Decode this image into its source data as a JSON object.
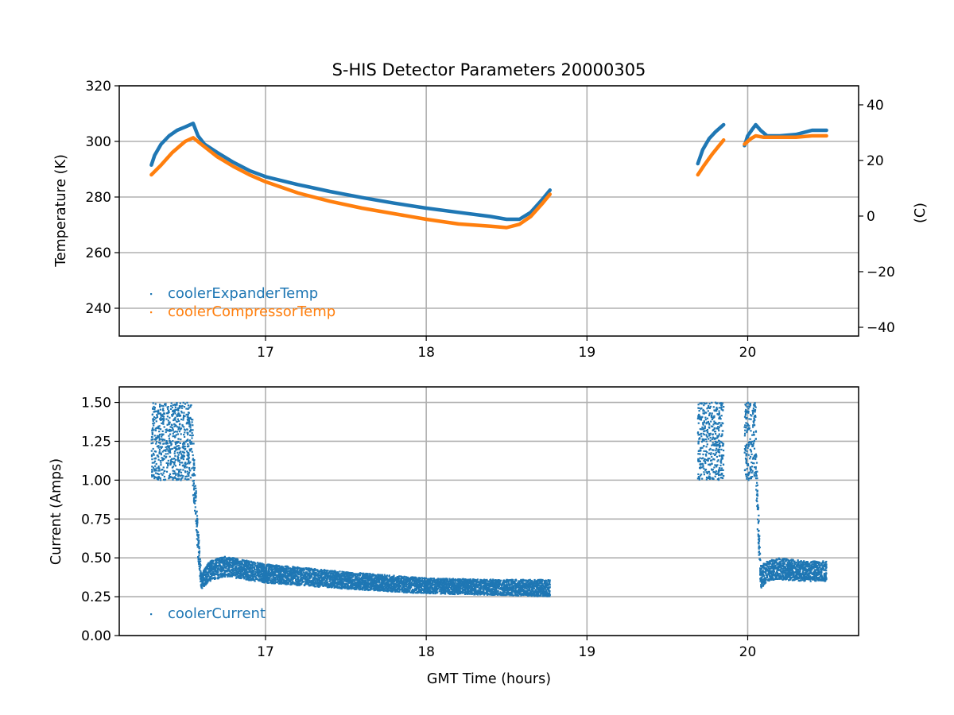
{
  "chart_data": [
    {
      "type": "scatter",
      "title": "S-HIS Detector Parameters 20000305",
      "xlabel": "",
      "ylabel": "Temperature (K)",
      "ylabel_right": "(C)",
      "xlim": [
        16.09,
        20.69
      ],
      "ylim": [
        230,
        320
      ],
      "ylim_right_celsius": [
        -43.15,
        46.85
      ],
      "grid": true,
      "legend_placement": "lower-left",
      "x_ticks": [
        "17",
        "18",
        "19",
        "20"
      ],
      "x_tick_values": [
        17,
        18,
        19,
        20
      ],
      "y_ticks": [
        "240",
        "260",
        "280",
        "300",
        "320"
      ],
      "y_tick_values": [
        240,
        260,
        280,
        300,
        320
      ],
      "y_right_ticks": [
        "−40",
        "−20",
        "0",
        "20",
        "40"
      ],
      "y_right_tick_values": [
        -40,
        -20,
        0,
        20,
        40
      ],
      "series": [
        {
          "name": "coolerExpanderTemp",
          "color": "#1f77b4",
          "segments": [
            [
              [
                16.29,
                291.5
              ],
              [
                16.31,
                295
              ],
              [
                16.35,
                299
              ],
              [
                16.4,
                302
              ],
              [
                16.45,
                304
              ],
              [
                16.5,
                305.2
              ],
              [
                16.55,
                306.5
              ],
              [
                16.58,
                302
              ],
              [
                16.62,
                299
              ],
              [
                16.7,
                296
              ],
              [
                16.8,
                292.5
              ],
              [
                16.9,
                289.5
              ],
              [
                17.0,
                287.3
              ],
              [
                17.2,
                284.5
              ],
              [
                17.4,
                282
              ],
              [
                17.6,
                279.8
              ],
              [
                17.8,
                277.8
              ],
              [
                18.0,
                276
              ],
              [
                18.2,
                274.5
              ],
              [
                18.4,
                273
              ],
              [
                18.5,
                272
              ],
              [
                18.58,
                272
              ],
              [
                18.65,
                274.5
              ],
              [
                18.72,
                279
              ],
              [
                18.77,
                282.5
              ]
            ],
            [
              [
                19.69,
                292
              ],
              [
                19.72,
                297
              ],
              [
                19.76,
                301
              ],
              [
                19.8,
                303.5
              ],
              [
                19.85,
                306
              ]
            ],
            [
              [
                19.98,
                298.5
              ],
              [
                20.0,
                302
              ],
              [
                20.03,
                304.5
              ],
              [
                20.05,
                306
              ],
              [
                20.08,
                304
              ],
              [
                20.12,
                302
              ],
              [
                20.2,
                302
              ],
              [
                20.3,
                302.5
              ],
              [
                20.4,
                304
              ],
              [
                20.49,
                304
              ]
            ]
          ]
        },
        {
          "name": "coolerCompressorTemp",
          "color": "#ff7f0e",
          "segments": [
            [
              [
                16.29,
                288
              ],
              [
                16.35,
                291.5
              ],
              [
                16.42,
                296
              ],
              [
                16.5,
                300
              ],
              [
                16.55,
                301.3
              ],
              [
                16.6,
                299
              ],
              [
                16.7,
                294.5
              ],
              [
                16.8,
                291
              ],
              [
                16.9,
                288
              ],
              [
                17.0,
                285.5
              ],
              [
                17.2,
                281.5
              ],
              [
                17.4,
                278.5
              ],
              [
                17.6,
                276
              ],
              [
                17.8,
                274
              ],
              [
                18.0,
                272
              ],
              [
                18.2,
                270.3
              ],
              [
                18.4,
                269.5
              ],
              [
                18.5,
                269
              ],
              [
                18.58,
                270.2
              ],
              [
                18.65,
                273
              ],
              [
                18.72,
                277.5
              ],
              [
                18.77,
                281
              ]
            ],
            [
              [
                19.69,
                288
              ],
              [
                19.73,
                291.5
              ],
              [
                19.78,
                295.5
              ],
              [
                19.85,
                300.5
              ]
            ],
            [
              [
                19.98,
                299
              ],
              [
                20.02,
                301
              ],
              [
                20.05,
                302
              ],
              [
                20.1,
                301.5
              ],
              [
                20.2,
                301.5
              ],
              [
                20.3,
                301.5
              ],
              [
                20.4,
                302
              ],
              [
                20.49,
                302
              ]
            ]
          ]
        }
      ]
    },
    {
      "type": "scatter",
      "title": "",
      "xlabel": "GMT Time (hours)",
      "ylabel": "Current (Amps)",
      "xlim": [
        16.09,
        20.69
      ],
      "ylim": [
        0,
        1.6
      ],
      "grid": true,
      "legend_placement": "lower-left",
      "x_ticks": [
        "17",
        "18",
        "19",
        "20"
      ],
      "x_tick_values": [
        17,
        18,
        19,
        20
      ],
      "y_ticks": [
        "0.00",
        "0.25",
        "0.50",
        "0.75",
        "1.00",
        "1.25",
        "1.50"
      ],
      "y_tick_values": [
        0,
        0.25,
        0.5,
        0.75,
        1.0,
        1.25,
        1.5
      ],
      "series": [
        {
          "name": "coolerCurrent",
          "color": "#1f77b4",
          "bands_x_low_high": [
            [
              [
                16.29,
                1.0,
                1.5
              ],
              [
                16.54,
                1.0,
                1.5
              ],
              [
                16.56,
                0.8,
                1.1
              ],
              [
                16.58,
                0.5,
                0.7
              ],
              [
                16.6,
                0.3,
                0.4
              ],
              [
                16.65,
                0.35,
                0.48
              ],
              [
                16.75,
                0.38,
                0.51
              ],
              [
                17.0,
                0.34,
                0.46
              ],
              [
                17.5,
                0.3,
                0.41
              ],
              [
                18.0,
                0.27,
                0.37
              ],
              [
                18.5,
                0.26,
                0.36
              ],
              [
                18.77,
                0.25,
                0.36
              ]
            ],
            [
              [
                19.69,
                1.0,
                1.5
              ],
              [
                19.85,
                1.0,
                1.5
              ]
            ],
            [
              [
                19.98,
                1.0,
                1.5
              ],
              [
                20.05,
                1.0,
                1.5
              ],
              [
                20.06,
                0.7,
                1.0
              ],
              [
                20.08,
                0.3,
                0.45
              ],
              [
                20.12,
                0.35,
                0.48
              ],
              [
                20.2,
                0.36,
                0.5
              ],
              [
                20.35,
                0.35,
                0.48
              ],
              [
                20.49,
                0.35,
                0.48
              ]
            ]
          ]
        }
      ]
    }
  ]
}
